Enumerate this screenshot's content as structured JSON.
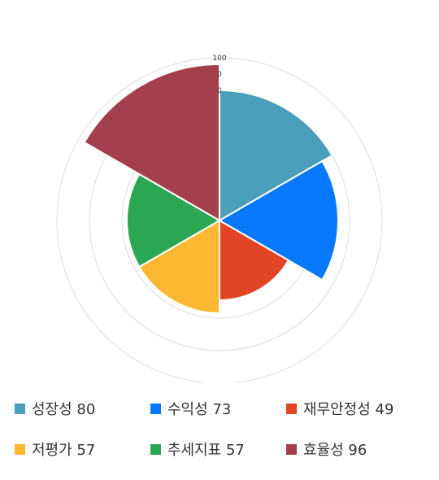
{
  "chart_data": {
    "type": "polar-area",
    "title": "",
    "rlim": [
      0,
      100
    ],
    "r_ticks": [
      "100",
      "0",
      "0"
    ],
    "categories": [
      "성장성",
      "수익성",
      "재무안정성",
      "저평가",
      "추세지표",
      "효율성"
    ],
    "values": [
      80,
      73,
      49,
      57,
      57,
      96
    ],
    "colors": [
      "#4aa0bb",
      "#0878fd",
      "#e14526",
      "#fdb832",
      "#2ba653",
      "#a4404d"
    ],
    "legend": [
      {
        "label": "성장성 80"
      },
      {
        "label": "수익성 73"
      },
      {
        "label": "재무안정성 49"
      },
      {
        "label": "저평가 57"
      },
      {
        "label": "추세지표 57"
      },
      {
        "label": "효율성 96"
      }
    ],
    "legend_position": "bottom",
    "grid": true
  }
}
